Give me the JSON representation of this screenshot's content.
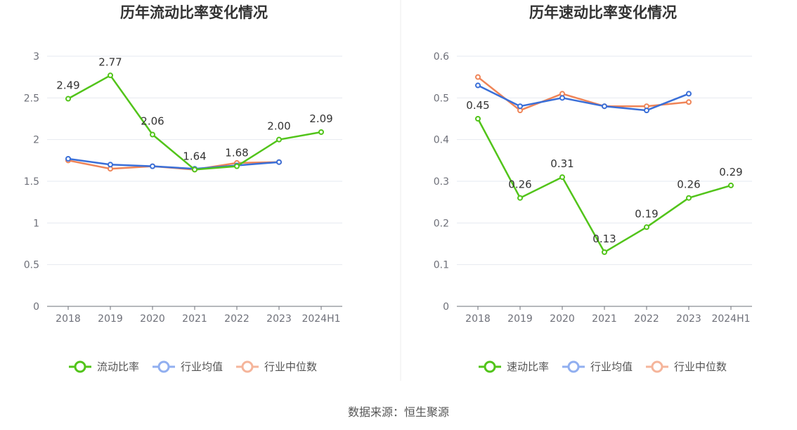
{
  "source_text": "数据来源：恒生聚源",
  "chart_data": [
    {
      "type": "line",
      "title": "历年流动比率变化情况",
      "xlabel": "",
      "ylabel": "",
      "categories": [
        "2018",
        "2019",
        "2020",
        "2021",
        "2022",
        "2023",
        "2024H1"
      ],
      "ylim": [
        0,
        3
      ],
      "yticks": [
        "0",
        "0.5",
        "1",
        "1.5",
        "2",
        "2.5",
        "3"
      ],
      "grid": true,
      "legend_position": "bottom",
      "series": [
        {
          "name": "流动比率",
          "color": "#52c41a",
          "labels": true,
          "values": [
            2.49,
            2.77,
            2.06,
            1.64,
            1.68,
            2.0,
            2.09
          ],
          "value_labels": [
            "2.49",
            "2.77",
            "2.06",
            "1.64",
            "1.68",
            "2.00",
            "2.09"
          ]
        },
        {
          "name": "行业均值",
          "color": "#3a6fd8",
          "legend_color": "#91aff0",
          "labels": false,
          "values": [
            1.77,
            1.7,
            1.68,
            1.65,
            1.69,
            1.73,
            null
          ]
        },
        {
          "name": "行业中位数",
          "color": "#ef8457",
          "legend_color": "#f5b59b",
          "labels": false,
          "values": [
            1.75,
            1.65,
            1.68,
            1.64,
            1.72,
            1.73,
            null
          ]
        }
      ]
    },
    {
      "type": "line",
      "title": "历年速动比率变化情况",
      "xlabel": "",
      "ylabel": "",
      "categories": [
        "2018",
        "2019",
        "2020",
        "2021",
        "2022",
        "2023",
        "2024H1"
      ],
      "ylim": [
        0,
        0.6
      ],
      "yticks": [
        "0",
        "0.1",
        "0.2",
        "0.3",
        "0.4",
        "0.5",
        "0.6"
      ],
      "grid": true,
      "legend_position": "bottom",
      "series": [
        {
          "name": "速动比率",
          "color": "#52c41a",
          "labels": true,
          "values": [
            0.45,
            0.26,
            0.31,
            0.13,
            0.19,
            0.26,
            0.29
          ],
          "value_labels": [
            "0.45",
            "0.26",
            "0.31",
            "0.13",
            "0.19",
            "0.26",
            "0.29"
          ]
        },
        {
          "name": "行业均值",
          "color": "#3a6fd8",
          "legend_color": "#91aff0",
          "labels": false,
          "values": [
            0.53,
            0.48,
            0.5,
            0.48,
            0.47,
            0.51,
            null
          ]
        },
        {
          "name": "行业中位数",
          "color": "#ef8457",
          "legend_color": "#f5b59b",
          "labels": false,
          "values": [
            0.55,
            0.47,
            0.51,
            0.48,
            0.48,
            0.49,
            null
          ]
        }
      ]
    }
  ]
}
